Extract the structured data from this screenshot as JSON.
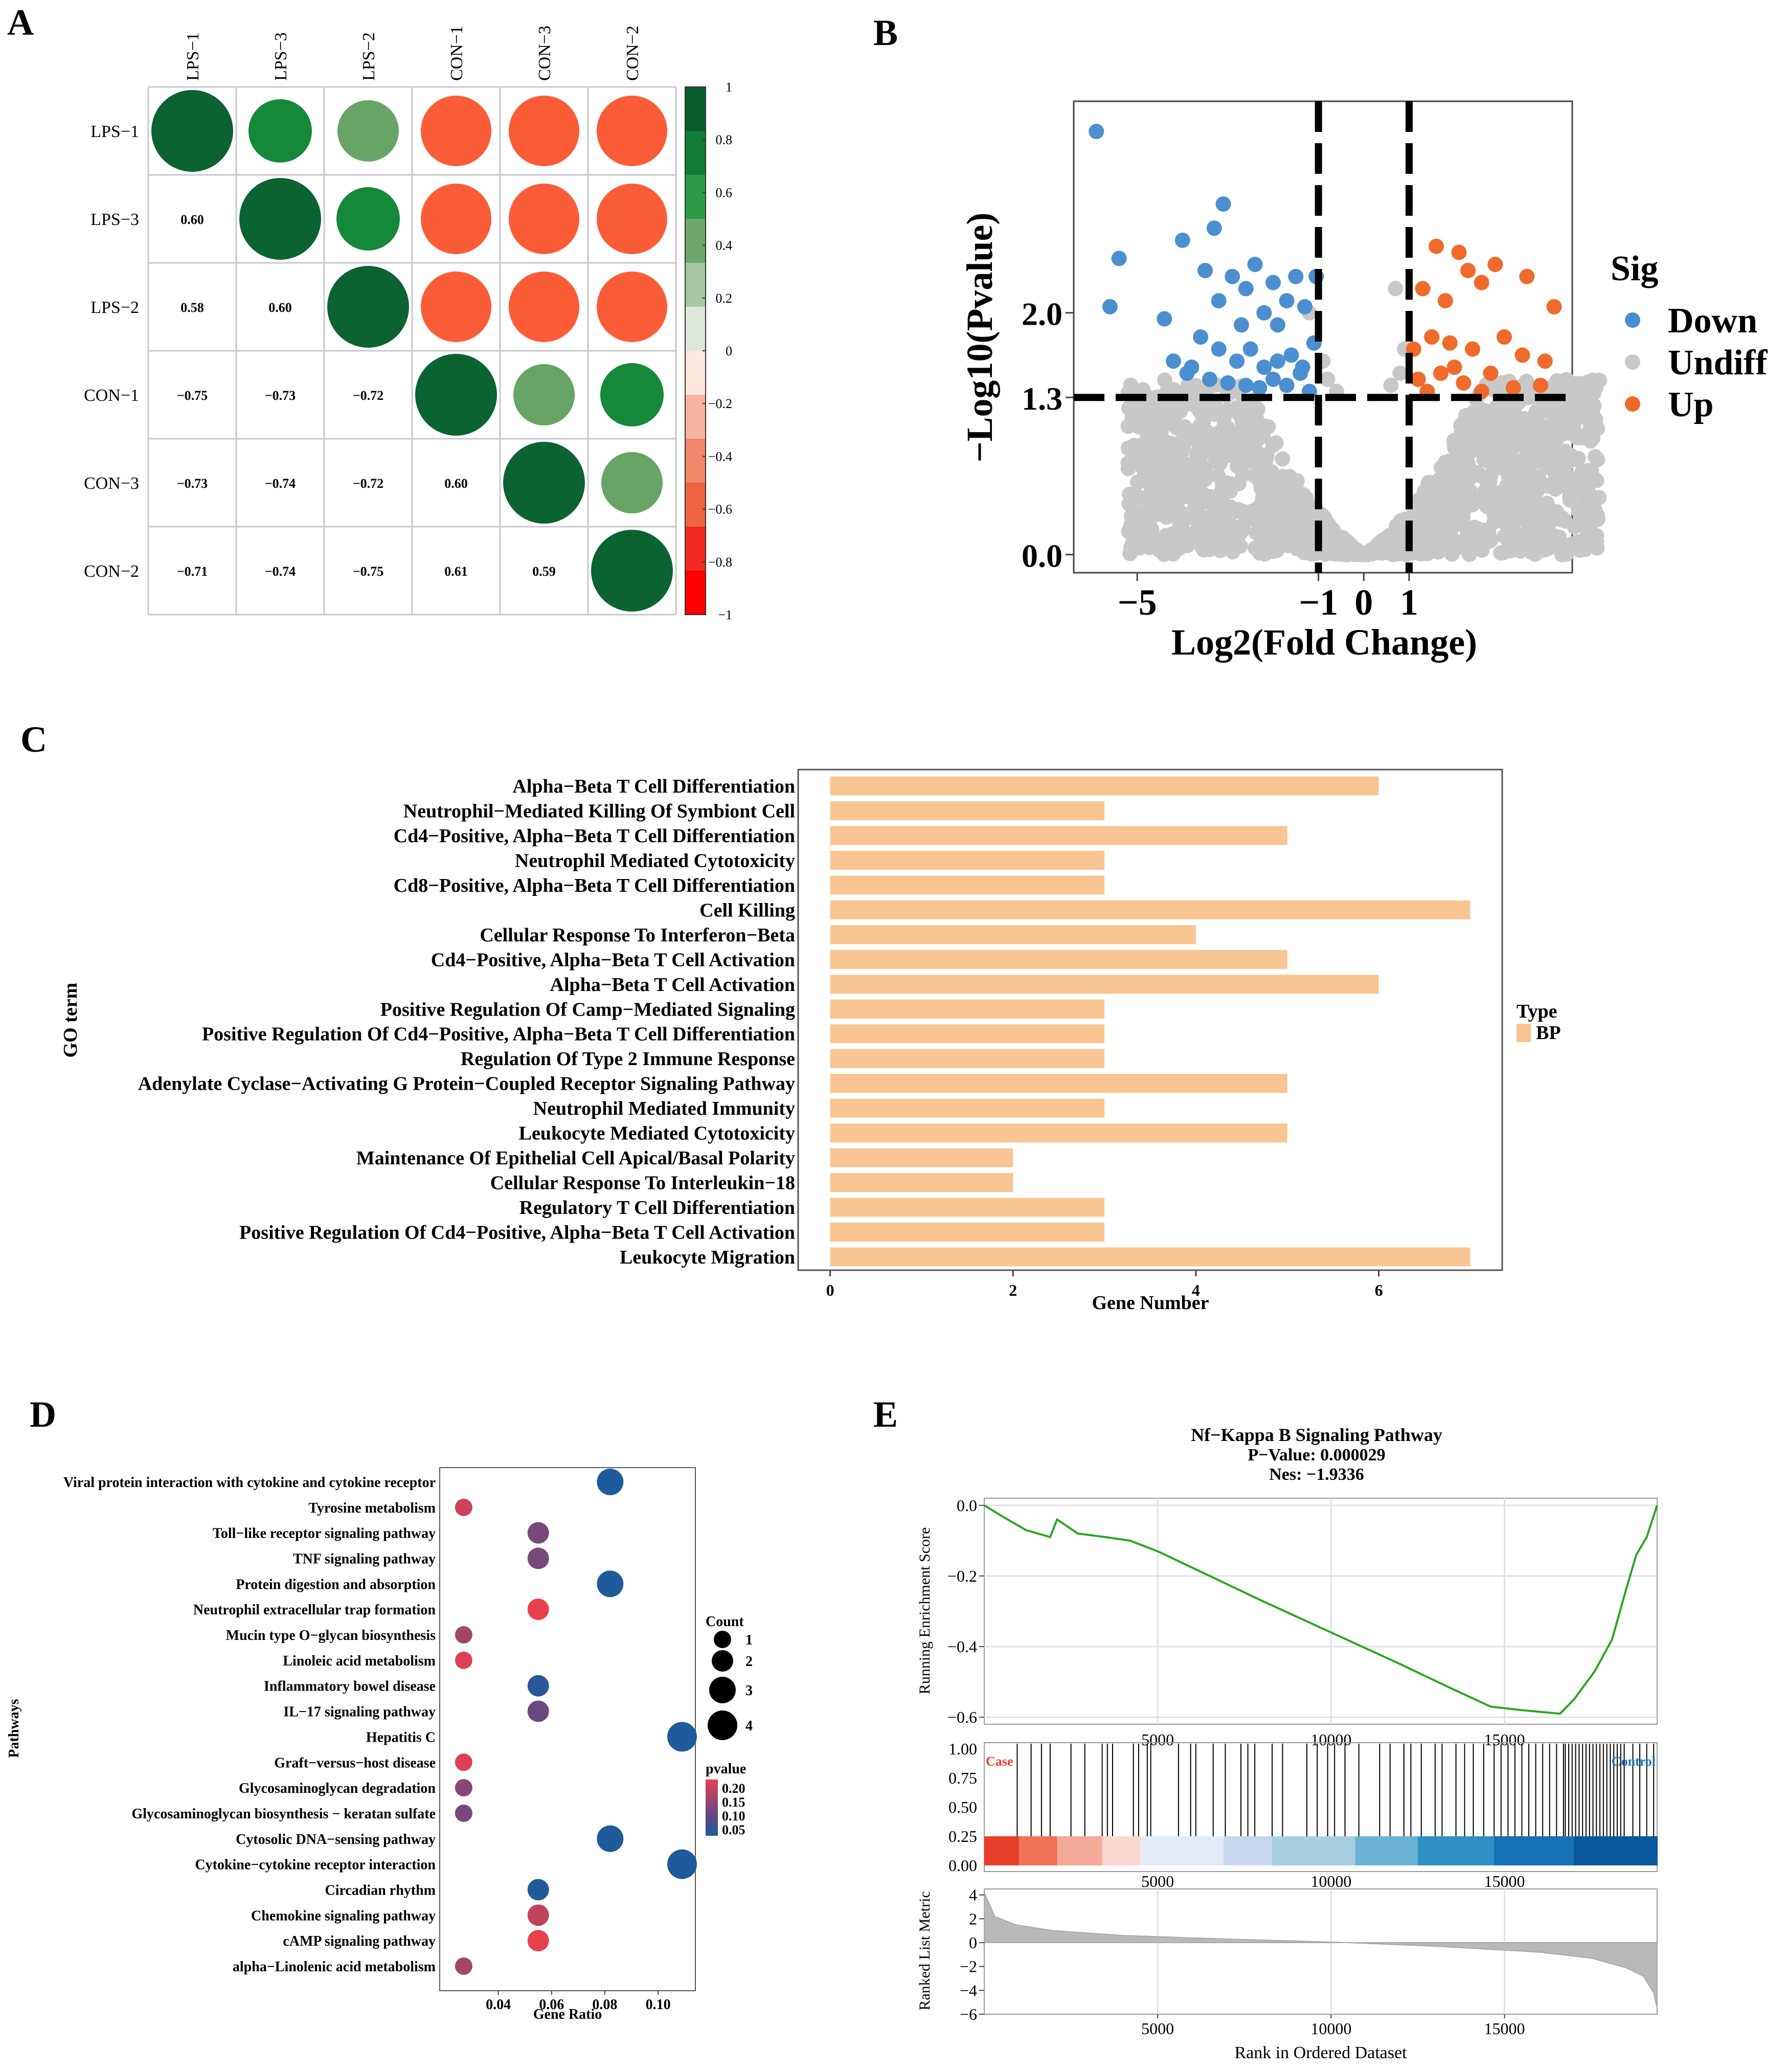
{
  "panels": {
    "A": "A",
    "B": "B",
    "C": "C",
    "D": "D",
    "E": "E"
  },
  "chart_data": [
    {
      "id": "A",
      "type": "heatmap",
      "subtype": "correlation-circle-matrix",
      "col_labels": [
        "LPS−1",
        "LPS−3",
        "LPS−2",
        "CON−1",
        "CON−3",
        "CON−2"
      ],
      "row_labels": [
        "LPS−1",
        "LPS−3",
        "LPS−2",
        "CON−1",
        "CON−3",
        "CON−2"
      ],
      "matrix": [
        [
          1,
          0.6,
          0.58,
          -0.75,
          -0.73,
          -0.71
        ],
        [
          0.6,
          1,
          0.6,
          -0.73,
          -0.74,
          -0.74
        ],
        [
          0.58,
          0.6,
          1,
          -0.72,
          -0.72,
          -0.75
        ],
        [
          -0.75,
          -0.73,
          -0.72,
          1,
          0.6,
          0.61
        ],
        [
          -0.73,
          -0.74,
          -0.72,
          0.6,
          1,
          0.59
        ],
        [
          -0.71,
          -0.74,
          -0.75,
          0.61,
          0.59,
          1
        ]
      ],
      "lower_labels": [
        [
          "0.60"
        ],
        [
          "0.58",
          "0.60"
        ],
        [
          "−0.75",
          "−0.73",
          "−0.72"
        ],
        [
          "−0.73",
          "−0.74",
          "−0.72",
          "0.60"
        ],
        [
          "−0.71",
          "−0.74",
          "−0.75",
          "0.61",
          "0.59"
        ]
      ],
      "lower_labels_row_start": [
        "LPS−3",
        "LPS−2",
        "CON−1",
        "CON−3",
        "CON−2"
      ],
      "colorbar_ticks": [
        "1",
        "0.8",
        "0.6",
        "0.4",
        "0.2",
        "0",
        "−0.2",
        "−0.4",
        "−0.6",
        "−0.8",
        "−1"
      ],
      "colorbar_values": [
        1,
        0.8,
        0.6,
        0.4,
        0.2,
        0,
        -0.2,
        -0.4,
        -0.6,
        -0.8,
        -1
      ],
      "colorbar_colors": [
        "#0a5e2c",
        "#137d36",
        "#2d9a48",
        "#6ea66c",
        "#a6c9a2",
        "#dde8da",
        "#fde7df",
        "#f7b3a0",
        "#f4866a",
        "#f06340",
        "#f42a22",
        "#ff0000"
      ],
      "colors": {
        "dark_green": "#0b6331",
        "green": "#15893a",
        "light_green": "#67a465",
        "orange": "#fa5c38",
        "orange2": "#fb5536"
      }
    },
    {
      "id": "B",
      "type": "scatter",
      "subtype": "volcano",
      "xlabel": "Log2(Fold Change)",
      "ylabel": "−Log10(Pvalue)",
      "xlim": [
        -6.4,
        4.6
      ],
      "ylim": [
        -0.15,
        3.75
      ],
      "x_ticks": [
        -5,
        -1,
        0,
        1
      ],
      "x_tick_labels": [
        "−5",
        "−1",
        "0",
        "1"
      ],
      "y_ticks": [
        0,
        1.3,
        2
      ],
      "y_tick_labels": [
        "0.0",
        "1.3",
        "2.0"
      ],
      "hlines": [
        1.3
      ],
      "vlines": [
        -1,
        1
      ],
      "legend_title": "Sig",
      "legend_labels": [
        "Down",
        "Undiff",
        "Up"
      ],
      "colors": {
        "Down": "#4c8fd0",
        "Undiff": "#c8c8c8",
        "Up": "#f06a2b"
      },
      "down_points": [
        [
          -5.9,
          3.5
        ],
        [
          -5.4,
          2.45
        ],
        [
          -5.6,
          2.05
        ],
        [
          -4.4,
          1.95
        ],
        [
          -4.0,
          2.6
        ],
        [
          -3.3,
          2.7
        ],
        [
          -3.1,
          2.9
        ],
        [
          -3.5,
          2.35
        ],
        [
          -3.2,
          2.1
        ],
        [
          -2.9,
          2.3
        ],
        [
          -2.6,
          2.2
        ],
        [
          -2.4,
          2.4
        ],
        [
          -2.2,
          2.0
        ],
        [
          -2.0,
          2.25
        ],
        [
          -1.7,
          2.1
        ],
        [
          -1.5,
          2.3
        ],
        [
          -1.3,
          2.05
        ],
        [
          -3.6,
          1.8
        ],
        [
          -3.2,
          1.7
        ],
        [
          -2.8,
          1.6
        ],
        [
          -2.5,
          1.7
        ],
        [
          -2.2,
          1.55
        ],
        [
          -1.9,
          1.6
        ],
        [
          -1.6,
          1.65
        ],
        [
          -1.4,
          1.5
        ],
        [
          -3.9,
          1.5
        ],
        [
          -3.4,
          1.45
        ],
        [
          -3.0,
          1.42
        ],
        [
          -2.6,
          1.4
        ],
        [
          -2.3,
          1.38
        ],
        [
          -2.0,
          1.45
        ],
        [
          -1.7,
          1.4
        ],
        [
          -1.2,
          1.35
        ],
        [
          -4.2,
          1.6
        ],
        [
          -1.1,
          1.75
        ],
        [
          -1.05,
          2.3
        ],
        [
          -2.7,
          1.9
        ],
        [
          -1.9,
          1.9
        ],
        [
          -3.8,
          1.55
        ],
        [
          -1.35,
          1.55
        ]
      ],
      "up_points": [
        [
          1.3,
          2.2
        ],
        [
          1.6,
          2.55
        ],
        [
          1.8,
          2.1
        ],
        [
          2.3,
          2.35
        ],
        [
          2.6,
          2.25
        ],
        [
          2.1,
          2.5
        ],
        [
          2.9,
          2.4
        ],
        [
          3.6,
          2.3
        ],
        [
          4.2,
          2.05
        ],
        [
          1.5,
          1.8
        ],
        [
          1.9,
          1.75
        ],
        [
          2.4,
          1.7
        ],
        [
          3.1,
          1.8
        ],
        [
          3.5,
          1.65
        ],
        [
          4.0,
          1.6
        ],
        [
          1.2,
          1.45
        ],
        [
          1.7,
          1.5
        ],
        [
          2.2,
          1.42
        ],
        [
          2.8,
          1.5
        ],
        [
          3.3,
          1.38
        ],
        [
          1.4,
          1.35
        ],
        [
          2.6,
          1.35
        ],
        [
          3.9,
          1.4
        ],
        [
          1.1,
          1.7
        ],
        [
          2.0,
          1.55
        ]
      ]
    },
    {
      "id": "C",
      "type": "bar",
      "orientation": "horizontal",
      "xlabel": "Gene Number",
      "ylabel": "GO term",
      "xlim": [
        -0.35,
        7.35
      ],
      "x_ticks": [
        0,
        2,
        4,
        6
      ],
      "legend_title": "Type",
      "legend_labels": [
        "BP"
      ],
      "color": "#f9c592",
      "categories": [
        "Alpha−Beta T Cell Differentiation",
        "Neutrophil−Mediated Killing Of Symbiont Cell",
        "Cd4−Positive, Alpha−Beta T Cell Differentiation",
        "Neutrophil Mediated Cytotoxicity",
        "Cd8−Positive, Alpha−Beta T Cell Differentiation",
        "Cell Killing",
        "Cellular Response To Interferon−Beta",
        "Cd4−Positive, Alpha−Beta T Cell Activation",
        "Alpha−Beta T Cell Activation",
        "Positive Regulation Of Camp−Mediated Signaling",
        "Positive Regulation Of Cd4−Positive, Alpha−Beta T Cell Differentiation",
        "Regulation Of Type 2 Immune Response",
        "Adenylate Cyclase−Activating G Protein−Coupled Receptor Signaling Pathway",
        "Neutrophil Mediated Immunity",
        "Leukocyte Mediated Cytotoxicity",
        "Maintenance Of Epithelial Cell Apical/Basal Polarity",
        "Cellular Response To Interleukin−18",
        "Regulatory T Cell Differentiation",
        "Positive Regulation Of Cd4−Positive, Alpha−Beta T Cell Activation",
        "Leukocyte Migration"
      ],
      "values": [
        6,
        3,
        5,
        3,
        3,
        7,
        4,
        5,
        6,
        3,
        3,
        3,
        5,
        3,
        5,
        2,
        2,
        3,
        3,
        7
      ]
    },
    {
      "id": "D",
      "type": "scatter",
      "subtype": "kegg-dotplot",
      "xlabel": "Gene Ratio",
      "ylabel": "Pathways",
      "xlim": [
        0.018,
        0.114
      ],
      "x_ticks": [
        0.04,
        0.06,
        0.08,
        0.1
      ],
      "x_tick_labels": [
        "0.04",
        "0.06",
        "0.08",
        "0.10"
      ],
      "size_legend_title": "Count",
      "size_legend_values": [
        1,
        2,
        3,
        4
      ],
      "color_legend_title": "pvalue",
      "color_legend_ticks": [
        "0.20",
        "0.15",
        "0.10",
        "0.05"
      ],
      "color_legend_values": [
        0.2,
        0.15,
        0.1,
        0.05
      ],
      "color_stops": [
        "#e8414d",
        "#a2466a",
        "#5b4a86",
        "#1f5a9a"
      ],
      "pathways": [
        "Viral protein interaction with cytokine and cytokine receptor",
        "Tyrosine metabolism",
        "Toll−like receptor signaling pathway",
        "TNF signaling pathway",
        "Protein digestion and absorption",
        "Neutrophil extracellular trap formation",
        "Mucin type O−glycan biosynthesis",
        "Linoleic acid metabolism",
        "Inflammatory bowel disease",
        "IL−17 signaling pathway",
        "Hepatitis C",
        "Graft−versus−host disease",
        "Glycosaminoglycan degradation",
        "Glycosaminoglycan biosynthesis − keratan sulfate",
        "Cytosolic DNA−sensing pathway",
        "Cytokine−cytokine receptor interaction",
        "Circadian rhythm",
        "Chemokine signaling pathway",
        "cAMP signaling pathway",
        "alpha−Linolenic acid metabolism"
      ],
      "gene_ratio": [
        0.082,
        0.027,
        0.055,
        0.055,
        0.082,
        0.055,
        0.027,
        0.027,
        0.055,
        0.055,
        0.109,
        0.027,
        0.027,
        0.027,
        0.082,
        0.109,
        0.055,
        0.055,
        0.055,
        0.027
      ],
      "count": [
        3,
        1,
        2,
        2,
        3,
        2,
        1,
        1,
        2,
        2,
        4,
        1,
        1,
        1,
        3,
        4,
        2,
        2,
        2,
        1
      ],
      "pvalue": [
        0.03,
        0.18,
        0.12,
        0.12,
        0.03,
        0.2,
        0.15,
        0.19,
        0.06,
        0.11,
        0.02,
        0.19,
        0.13,
        0.12,
        0.03,
        0.05,
        0.04,
        0.17,
        0.2,
        0.15
      ]
    },
    {
      "id": "E",
      "type": "line",
      "subtype": "gsea",
      "title": "Nf−Kappa B Signaling Pathway",
      "subtitle1": "P−Value: 0.000029",
      "subtitle2": "Nes: −1.9336",
      "xlabel": "Rank in Ordered Dataset",
      "ylabel_top": "Running Enrichment Score",
      "ylabel_bottom": "Ranked List Metric",
      "xlim": [
        0,
        19400
      ],
      "x_ticks": [
        5000,
        10000,
        15000
      ],
      "x_tick_labels": [
        "5000",
        "10000",
        "15000"
      ],
      "es_ylim": [
        -0.62,
        0.02
      ],
      "es_y_ticks": [
        0,
        -0.2,
        -0.4,
        -0.6
      ],
      "es_y_tick_labels": [
        "0.0",
        "−0.2",
        "−0.4",
        "−0.6"
      ],
      "mid_y_tick_labels": [
        "1.00",
        "0.75",
        "0.50",
        "0.25",
        "0.00"
      ],
      "metric_ylim": [
        -6,
        4.5
      ],
      "metric_y_ticks": [
        4,
        2,
        0,
        -2,
        -4,
        -6
      ],
      "metric_y_tick_labels": [
        "4",
        "2",
        "0",
        "−2",
        "−4",
        "−6"
      ],
      "case_label": "Case",
      "control_label": "Control",
      "es_curve": [
        [
          0,
          0
        ],
        [
          500,
          -0.03
        ],
        [
          1200,
          -0.07
        ],
        [
          1900,
          -0.09
        ],
        [
          2100,
          -0.04
        ],
        [
          2700,
          -0.08
        ],
        [
          3500,
          -0.09
        ],
        [
          4200,
          -0.1
        ],
        [
          5000,
          -0.13
        ],
        [
          6500,
          -0.2
        ],
        [
          8000,
          -0.27
        ],
        [
          10000,
          -0.36
        ],
        [
          12000,
          -0.45
        ],
        [
          13500,
          -0.52
        ],
        [
          14600,
          -0.57
        ],
        [
          15500,
          -0.58
        ],
        [
          16600,
          -0.59
        ],
        [
          17000,
          -0.55
        ],
        [
          17600,
          -0.47
        ],
        [
          18100,
          -0.38
        ],
        [
          18500,
          -0.24
        ],
        [
          18800,
          -0.14
        ],
        [
          19100,
          -0.09
        ],
        [
          19400,
          0
        ]
      ],
      "hits": [
        950,
        1350,
        1650,
        1900,
        2500,
        2900,
        3400,
        3550,
        3700,
        4300,
        4450,
        4700,
        4800,
        5600,
        5950,
        6100,
        6600,
        6950,
        7400,
        7600,
        7800,
        8300,
        8600,
        9300,
        9600,
        9900,
        10100,
        10400,
        10800,
        11400,
        11700,
        12100,
        12300,
        12600,
        13000,
        13200,
        13600,
        13850,
        14100,
        14400,
        14700,
        14900,
        15100,
        15300,
        15500,
        15700,
        15900,
        16100,
        16300,
        16500,
        16700,
        16750,
        16850,
        16950,
        17050,
        17150,
        17250,
        17350,
        17450,
        17550,
        17650,
        17750,
        17850,
        17950,
        18050,
        18150,
        18250,
        18350,
        18450,
        18700,
        18900,
        19100,
        19300
      ],
      "heat_colors": [
        "#e83f2a",
        "#f0735a",
        "#f5a998",
        "#fad7cf",
        "#e4ebf6",
        "#c6d6ec",
        "#a6cde0",
        "#6bb3d5",
        "#2f8fc4",
        "#1571b3",
        "#0b579c"
      ],
      "heat_stops": [
        0,
        1000,
        2100,
        3400,
        4500,
        6900,
        8300,
        10700,
        12500,
        14700,
        17000,
        19400
      ],
      "metric_curve": [
        [
          0,
          4.2
        ],
        [
          300,
          2.2
        ],
        [
          900,
          1.5
        ],
        [
          2000,
          1.0
        ],
        [
          4000,
          0.6
        ],
        [
          7000,
          0.3
        ],
        [
          10000,
          0.05
        ],
        [
          13000,
          -0.3
        ],
        [
          16000,
          -0.8
        ],
        [
          17500,
          -1.3
        ],
        [
          18500,
          -2.1
        ],
        [
          19000,
          -2.8
        ],
        [
          19300,
          -4.2
        ],
        [
          19400,
          -5.5
        ]
      ]
    }
  ]
}
